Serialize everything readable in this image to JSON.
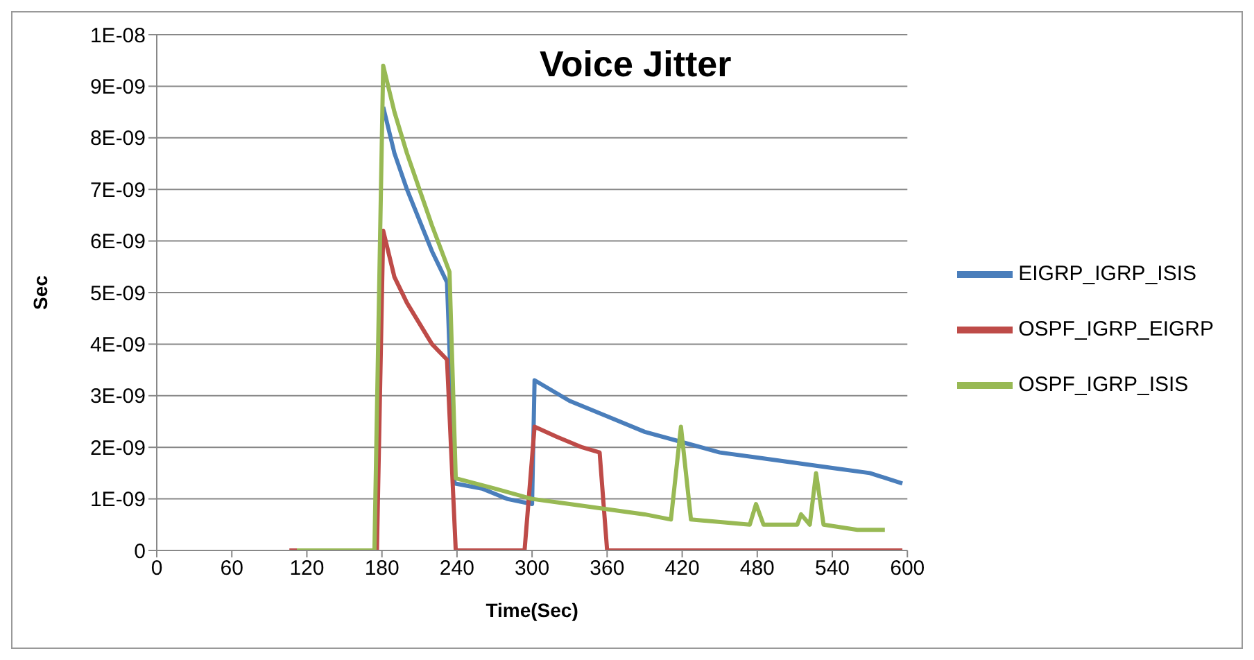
{
  "chart_data": {
    "type": "line",
    "title": "Voice Jitter",
    "xlabel": "Time(Sec)",
    "ylabel": "Sec",
    "xlim": [
      0,
      600
    ],
    "xticks": [
      0,
      60,
      120,
      180,
      240,
      300,
      360,
      420,
      480,
      540,
      600
    ],
    "ylim": [
      0,
      1e-08
    ],
    "yticks": [
      0,
      {
        "value": 1e-09,
        "label": "1E-09"
      },
      {
        "value": 2e-09,
        "label": "2E-09"
      },
      {
        "value": 3e-09,
        "label": "3E-09"
      },
      {
        "value": 4e-09,
        "label": "4E-09"
      },
      {
        "value": 5e-09,
        "label": "5E-09"
      },
      {
        "value": 6e-09,
        "label": "6E-09"
      },
      {
        "value": 7e-09,
        "label": "7E-09"
      },
      {
        "value": 8e-09,
        "label": "8E-09"
      },
      {
        "value": 9e-09,
        "label": "9E-09"
      },
      {
        "value": 1e-08,
        "label": "1E-08"
      }
    ],
    "grid": "y",
    "legend": "right",
    "marker": "none",
    "line_style": "solid",
    "series": [
      {
        "name": "EIGRP_IGRP_ISIS",
        "color": "#4a7ebb",
        "x": [
          181,
          190,
          200,
          210,
          220,
          232,
          238,
          260,
          280,
          300,
          302,
          330,
          360,
          390,
          420,
          450,
          480,
          510,
          540,
          570,
          596
        ],
        "values": [
          8.6e-09,
          7.7e-09,
          7e-09,
          6.4e-09,
          5.8e-09,
          5.2e-09,
          1.3e-09,
          1.2e-09,
          1e-09,
          9e-10,
          3.3e-09,
          2.9e-09,
          2.6e-09,
          2.3e-09,
          2.1e-09,
          1.9e-09,
          1.8e-09,
          1.7e-09,
          1.6e-09,
          1.5e-09,
          1.3e-09
        ]
      },
      {
        "name": "OSPF_IGRP_EIGRP",
        "color": "#be4b48",
        "x": [
          106,
          176,
          181,
          190,
          200,
          210,
          220,
          232,
          239,
          294,
          302,
          320,
          340,
          354,
          360,
          596
        ],
        "values": [
          0,
          0,
          6.2e-09,
          5.3e-09,
          4.8e-09,
          4.4e-09,
          4e-09,
          3.7e-09,
          0,
          0,
          2.4e-09,
          2.2e-09,
          2e-09,
          1.9e-09,
          0,
          0
        ]
      },
      {
        "name": "OSPF_IGRP_ISIS",
        "color": "#98b954",
        "x": [
          112,
          174,
          181,
          190,
          200,
          210,
          220,
          234,
          239,
          270,
          300,
          330,
          360,
          390,
          411,
          419,
          427,
          474,
          479,
          485,
          512,
          515,
          522,
          527,
          533,
          560,
          582
        ],
        "values": [
          0,
          0,
          9.4e-09,
          8.5e-09,
          7.7e-09,
          7e-09,
          6.3e-09,
          5.4e-09,
          1.4e-09,
          1.2e-09,
          1e-09,
          9e-10,
          8e-10,
          7e-10,
          6e-10,
          2.4e-09,
          6e-10,
          5e-10,
          9e-10,
          5e-10,
          5e-10,
          7e-10,
          5e-10,
          1.5e-09,
          5e-10,
          4e-10,
          4e-10
        ]
      }
    ]
  }
}
